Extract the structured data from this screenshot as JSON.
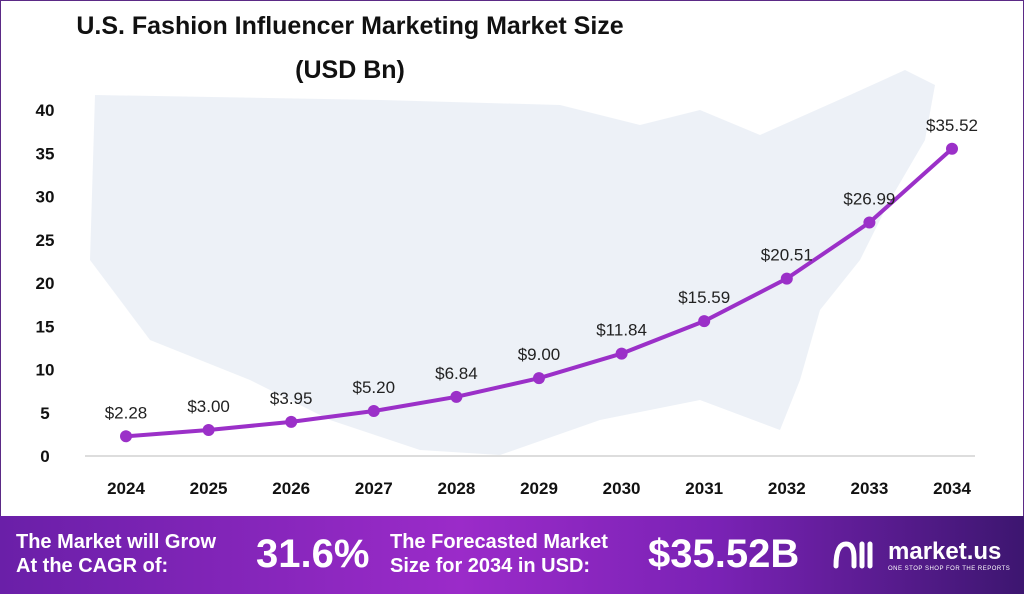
{
  "chart_data": {
    "type": "line",
    "title": "U.S. Fashion Influencer Marketing Market Size",
    "subtitle": "(USD Bn)",
    "categories": [
      "2024",
      "2025",
      "2026",
      "2027",
      "2028",
      "2029",
      "2030",
      "2031",
      "2032",
      "2033",
      "2034"
    ],
    "values": [
      2.28,
      3.0,
      3.95,
      5.2,
      6.84,
      9.0,
      11.84,
      15.59,
      20.51,
      26.99,
      35.52
    ],
    "data_labels": [
      "$2.28",
      "$3.00",
      "$3.95",
      "$5.20",
      "$6.84",
      "$9.00",
      "$11.84",
      "$15.59",
      "$20.51",
      "$26.99",
      "$35.52"
    ],
    "yticks": [
      "0",
      "5",
      "10",
      "15",
      "20",
      "25",
      "30",
      "35",
      "40"
    ],
    "ylim": [
      0,
      40
    ],
    "grid": false,
    "line_color": "#9b30c8"
  },
  "banner": {
    "cagr_label_1": "The Market will Grow",
    "cagr_label_2": "At the CAGR of:",
    "cagr_value": "31.6%",
    "forecast_label_1": "The Forecasted Market",
    "forecast_label_2": "Size for 2034 in USD:",
    "forecast_value": "$35.52B",
    "logo_name": "market.us",
    "logo_tagline": "ONE STOP SHOP FOR THE REPORTS"
  }
}
